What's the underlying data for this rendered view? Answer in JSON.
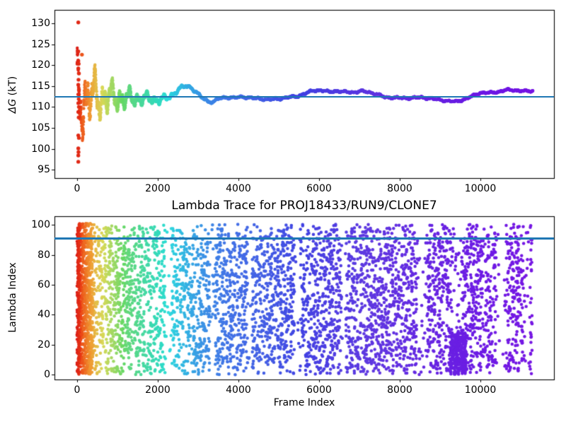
{
  "figure": {
    "background": "#ffffff",
    "accent_line_color": "#1f77b4",
    "colormap": "rainbow reversed: red at frame 0 through orange, green, cyan, blue to purple at final frame",
    "seed": 1337
  },
  "chart_data": [
    {
      "id": "dg-estimate-trace",
      "type": "scatter",
      "title": "",
      "xlabel": "",
      "ylabel": "ΔG (kT)",
      "ylabel_parts": {
        "symbol": "ΔG",
        "unit": " (kT)"
      },
      "xlim": [
        -561,
        11825
      ],
      "ylim": [
        93.0,
        133.2
      ],
      "grid": false,
      "legend": "none",
      "xticks": {
        "values": [
          0,
          2000,
          4000,
          6000,
          8000,
          10000
        ],
        "labels": [
          "0",
          "2000",
          "4000",
          "6000",
          "8000",
          "10000"
        ]
      },
      "yticks": {
        "values": [
          95,
          100,
          105,
          110,
          115,
          120,
          125,
          130
        ],
        "labels": [
          "95",
          "100",
          "105",
          "110",
          "115",
          "120",
          "125",
          "130"
        ]
      },
      "hline": {
        "y": 112.4,
        "color": "#1f77b4"
      },
      "n_frames": 11300,
      "marker_diameter_px": 4.6,
      "trace_anchors": [
        [
          0,
          112.3
        ],
        [
          600,
          112.3
        ],
        [
          1000,
          112.2
        ],
        [
          1300,
          112.0
        ],
        [
          1500,
          111.9
        ],
        [
          1700,
          112.1
        ],
        [
          1900,
          111.7
        ],
        [
          2100,
          111.9
        ],
        [
          2260,
          112.1
        ],
        [
          2400,
          113.2
        ],
        [
          2550,
          114.5
        ],
        [
          2700,
          115.0
        ],
        [
          2820,
          114.7
        ],
        [
          2950,
          113.6
        ],
        [
          3100,
          112.2
        ],
        [
          3250,
          111.3
        ],
        [
          3380,
          111.2
        ],
        [
          3500,
          112.0
        ],
        [
          3700,
          112.3
        ],
        [
          3900,
          112.2
        ],
        [
          4100,
          112.4
        ],
        [
          4400,
          112.1
        ],
        [
          4700,
          111.8
        ],
        [
          5000,
          111.9
        ],
        [
          5200,
          112.3
        ],
        [
          5450,
          112.5
        ],
        [
          5650,
          113.2
        ],
        [
          5850,
          113.9
        ],
        [
          6050,
          114.0
        ],
        [
          6250,
          113.6
        ],
        [
          6450,
          113.8
        ],
        [
          6650,
          113.6
        ],
        [
          6850,
          113.5
        ],
        [
          7050,
          113.8
        ],
        [
          7250,
          113.5
        ],
        [
          7450,
          113.0
        ],
        [
          7650,
          112.3
        ],
        [
          7900,
          112.2
        ],
        [
          8200,
          112.1
        ],
        [
          8500,
          112.3
        ],
        [
          8800,
          112.0
        ],
        [
          9000,
          111.7
        ],
        [
          9200,
          111.4
        ],
        [
          9400,
          111.3
        ],
        [
          9600,
          111.8
        ],
        [
          9800,
          112.6
        ],
        [
          10000,
          113.4
        ],
        [
          10250,
          113.4
        ],
        [
          10450,
          113.6
        ],
        [
          10650,
          114.1
        ],
        [
          10850,
          114.0
        ],
        [
          11050,
          113.8
        ],
        [
          11300,
          113.8
        ]
      ],
      "envelope_anchors": [
        [
          0,
          10.0
        ],
        [
          150,
          8.5
        ],
        [
          300,
          6.5
        ],
        [
          500,
          5.5
        ],
        [
          700,
          4.5
        ],
        [
          900,
          3.5
        ],
        [
          1100,
          2.8
        ],
        [
          1400,
          2.0
        ],
        [
          1700,
          1.4
        ],
        [
          2100,
          1.0
        ],
        [
          2500,
          0.5
        ],
        [
          3000,
          0.3
        ],
        [
          4000,
          0.25
        ],
        [
          11300,
          0.22
        ]
      ],
      "outliers": [
        [
          30,
          130.2
        ],
        [
          30,
          123.3
        ],
        [
          120,
          122.5
        ],
        [
          30,
          121.0
        ],
        [
          40,
          120.3
        ],
        [
          30,
          119.2
        ],
        [
          45,
          118.0
        ],
        [
          35,
          116.5
        ],
        [
          30,
          115.3
        ],
        [
          45,
          114.1
        ],
        [
          30,
          113.0
        ],
        [
          40,
          111.9
        ],
        [
          30,
          110.9
        ],
        [
          45,
          110.0
        ],
        [
          30,
          108.8
        ],
        [
          40,
          107.5
        ],
        [
          30,
          103.2
        ],
        [
          150,
          103.5
        ],
        [
          45,
          102.6
        ],
        [
          30,
          100.1
        ],
        [
          35,
          99.2
        ],
        [
          30,
          98.4
        ],
        [
          30,
          96.9
        ]
      ]
    },
    {
      "id": "lambda-trace",
      "type": "scatter",
      "title": "Lambda Trace for PROJ18433/RUN9/CLONE7",
      "xlabel": "Frame Index",
      "ylabel": "Lambda Index",
      "xlim": [
        -561,
        11825
      ],
      "ylim": [
        -3.2,
        105.8
      ],
      "grid": false,
      "legend": "none",
      "xticks": {
        "values": [
          0,
          2000,
          4000,
          6000,
          8000,
          10000
        ],
        "labels": [
          "0",
          "2000",
          "4000",
          "6000",
          "8000",
          "10000"
        ]
      },
      "yticks": {
        "values": [
          0,
          20,
          40,
          60,
          80,
          100
        ],
        "labels": [
          "0",
          "20",
          "40",
          "60",
          "80",
          "100"
        ]
      },
      "hline": {
        "y": 91,
        "color": "#1f77b4"
      },
      "lambda_range": [
        0,
        100
      ],
      "n_frames": 11300,
      "marker_diameter_px": 4.6,
      "n_points_rendered": 6200,
      "sparse_bands": [
        [
          2180,
          2330
        ],
        [
          3290,
          3420
        ],
        [
          4230,
          4340
        ],
        [
          5390,
          5530
        ],
        [
          6560,
          6660
        ],
        [
          8420,
          8670
        ],
        [
          9280,
          9560
        ],
        [
          10390,
          10610
        ],
        [
          11060,
          11230
        ]
      ],
      "dense_blob": {
        "frames": [
          9250,
          9650
        ],
        "lambda_max": 28
      },
      "dense_left_frames": [
        0,
        380
      ],
      "red_start_column_frames": [
        28,
        55
      ]
    }
  ],
  "color_stops": [
    [
      0.0,
      2,
      82,
      47
    ],
    [
      0.012,
      18,
      85,
      52
    ],
    [
      0.03,
      33,
      86,
      57
    ],
    [
      0.052,
      55,
      64,
      59
    ],
    [
      0.08,
      90,
      60,
      62
    ],
    [
      0.11,
      132,
      60,
      62
    ],
    [
      0.148,
      158,
      66,
      56
    ],
    [
      0.185,
      172,
      70,
      52
    ],
    [
      0.215,
      188,
      74,
      53
    ],
    [
      0.248,
      200,
      76,
      55
    ],
    [
      0.285,
      212,
      77,
      57
    ],
    [
      0.33,
      222,
      77,
      58
    ],
    [
      0.42,
      231,
      75,
      58
    ],
    [
      0.52,
      243,
      74,
      57
    ],
    [
      0.64,
      254,
      74,
      55
    ],
    [
      0.8,
      262,
      77,
      51
    ],
    [
      1.0,
      268,
      82,
      49
    ]
  ]
}
